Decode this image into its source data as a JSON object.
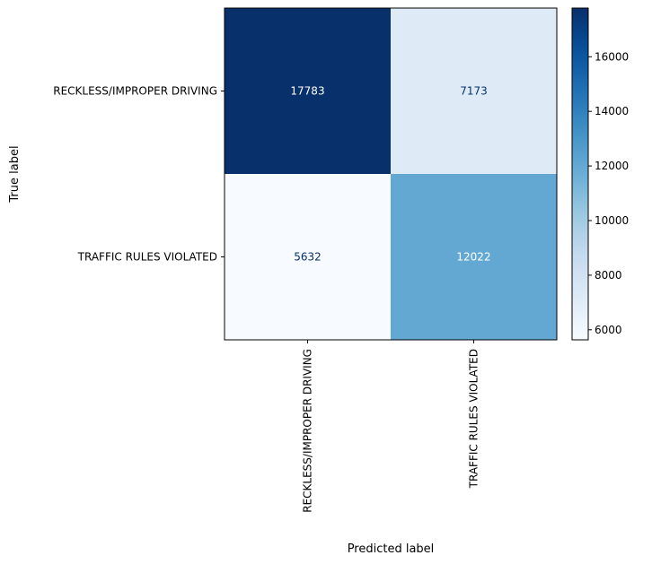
{
  "chart_data": {
    "type": "heatmap",
    "xlabel": "Predicted label",
    "ylabel": "True label",
    "x_categories": [
      "RECKLESS/IMPROPER DRIVING",
      "TRAFFIC RULES VIOLATED"
    ],
    "y_categories": [
      "RECKLESS/IMPROPER DRIVING",
      "TRAFFIC RULES VIOLATED"
    ],
    "values": [
      [
        17783,
        7173
      ],
      [
        5632,
        12022
      ]
    ],
    "cell_labels": [
      [
        "17783",
        "7173"
      ],
      [
        "5632",
        "12022"
      ]
    ],
    "colormap": "Blues",
    "colorbar": {
      "min": 5632,
      "max": 17783,
      "ticks": [
        6000,
        8000,
        10000,
        12000,
        14000,
        16000
      ],
      "tick_labels": [
        "6000",
        "8000",
        "10000",
        "12000",
        "14000",
        "16000"
      ]
    },
    "text_colors": {
      "on_dark": "#ffffff",
      "on_light": "#08306b"
    },
    "grid": false
  }
}
